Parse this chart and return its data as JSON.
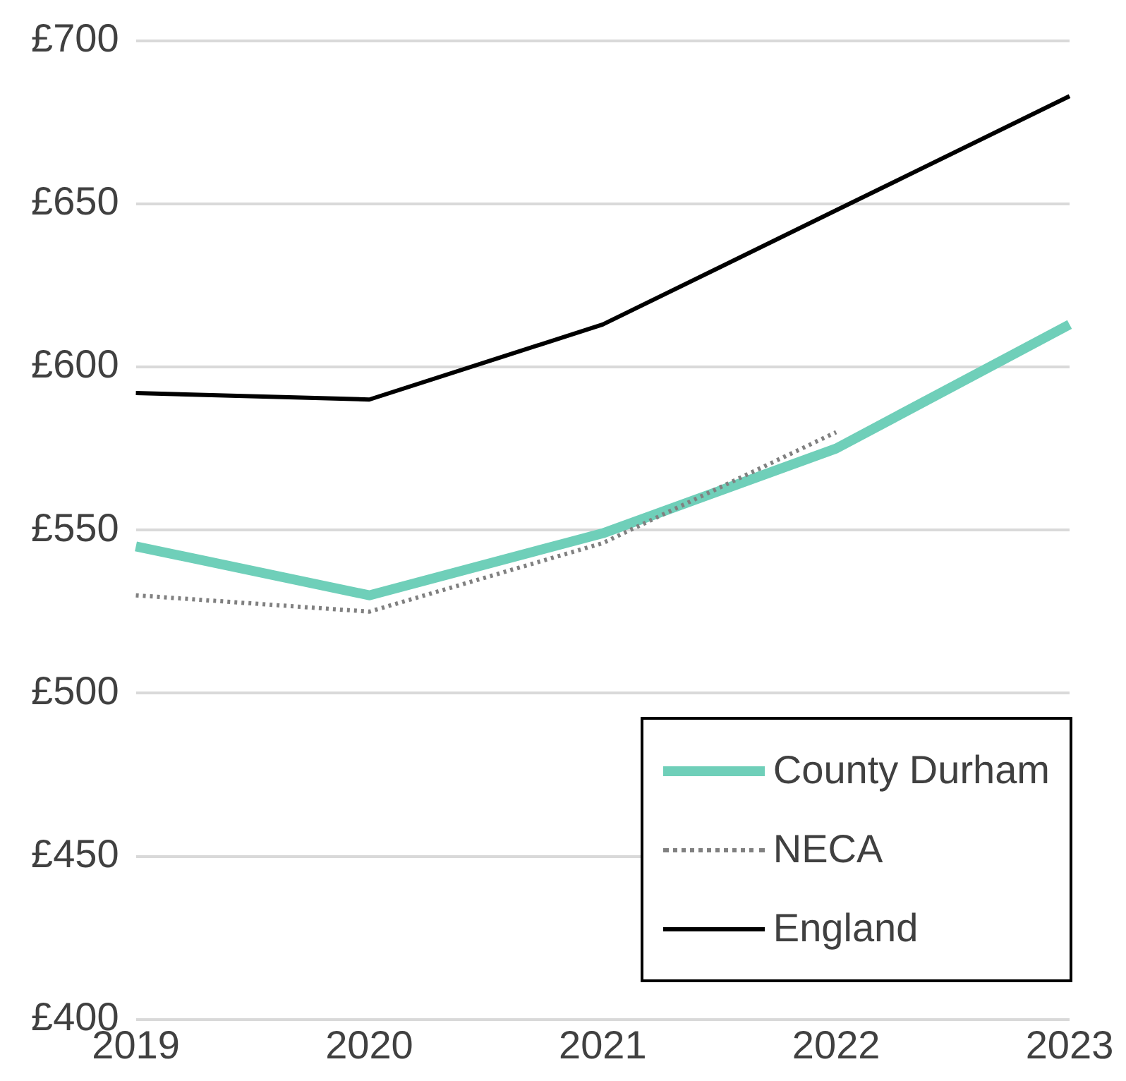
{
  "chart_data": {
    "type": "line",
    "categories": [
      "2019",
      "2020",
      "2021",
      "2022",
      "2023"
    ],
    "series": [
      {
        "name": "County Durham",
        "color": "#6fcfb9",
        "line_style": "solid",
        "values": [
          545,
          530,
          549,
          575,
          613
        ]
      },
      {
        "name": "NECA",
        "color": "#808080",
        "line_style": "dotted",
        "values": [
          530,
          525,
          546,
          580,
          null
        ]
      },
      {
        "name": "England",
        "color": "#000000",
        "line_style": "solid",
        "values": [
          592,
          590,
          613,
          648,
          683
        ]
      }
    ],
    "ylim": [
      400,
      700
    ],
    "yticks": [
      {
        "value": 400,
        "label": "£400"
      },
      {
        "value": 450,
        "label": "£450"
      },
      {
        "value": 500,
        "label": "£500"
      },
      {
        "value": 550,
        "label": "£550"
      },
      {
        "value": 600,
        "label": "£600"
      },
      {
        "value": 650,
        "label": "£650"
      },
      {
        "value": 700,
        "label": "£700"
      }
    ],
    "grid": "y",
    "legend": "bottom right",
    "marker": "none"
  }
}
